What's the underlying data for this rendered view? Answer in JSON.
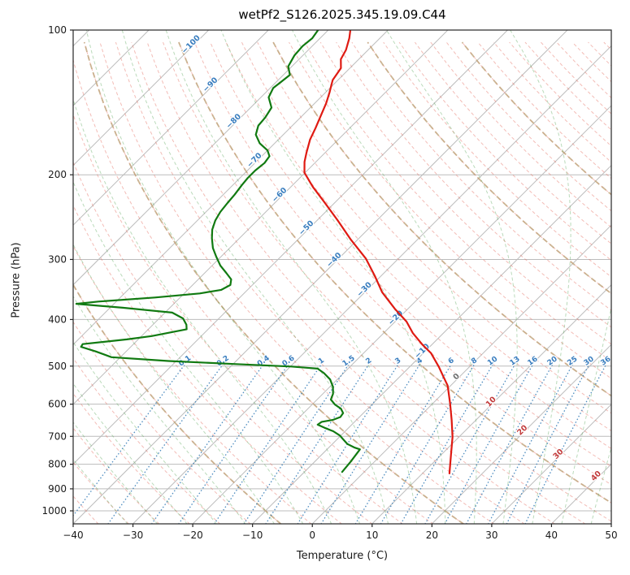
{
  "title": "wetPf2_S126.2025.345.19.09.C44",
  "axes": {
    "xlabel": "Temperature (°C)",
    "ylabel": "Pressure (hPa)",
    "x_ticks": [
      -40,
      -30,
      -20,
      -10,
      0,
      10,
      20,
      30,
      40,
      50
    ],
    "y_ticks": [
      100,
      200,
      300,
      400,
      500,
      600,
      700,
      800,
      900,
      1000
    ],
    "x_min": -40,
    "x_max": 50,
    "p_top": 100,
    "p_bottom": 1064
  },
  "chart_data": {
    "type": "line",
    "variant": "skew-t-log-p",
    "title": "wetPf2_S126.2025.345.19.09.C44",
    "xlabel": "Temperature (°C)",
    "ylabel": "Pressure (hPa)",
    "xlim": [
      -40,
      50
    ],
    "pressure_lim": [
      100,
      1064
    ],
    "skew_degrees": 45,
    "grid": true,
    "series": [
      {
        "name": "temperature",
        "color": "#df1a12",
        "points_p_hPa_T_C": [
          [
            100,
            -76.3
          ],
          [
            104,
            -75.1
          ],
          [
            110,
            -73.7
          ],
          [
            115,
            -73.0
          ],
          [
            120,
            -71.5
          ],
          [
            127,
            -70.9
          ],
          [
            130,
            -70.3
          ],
          [
            135,
            -69.3
          ],
          [
            142,
            -68.1
          ],
          [
            150,
            -67.0
          ],
          [
            160,
            -65.7
          ],
          [
            169,
            -64.7
          ],
          [
            180,
            -63.1
          ],
          [
            188,
            -61.9
          ],
          [
            198,
            -60.1
          ],
          [
            212,
            -56.3
          ],
          [
            227,
            -52.1
          ],
          [
            249,
            -46.5
          ],
          [
            273,
            -41.1
          ],
          [
            299,
            -35.4
          ],
          [
            325,
            -31.0
          ],
          [
            351,
            -27.1
          ],
          [
            380,
            -22.2
          ],
          [
            404,
            -18.1
          ],
          [
            427,
            -15.1
          ],
          [
            451,
            -11.6
          ],
          [
            470,
            -8.7
          ],
          [
            502,
            -5.1
          ],
          [
            524,
            -2.9
          ],
          [
            549,
            -0.5
          ],
          [
            598,
            2.9
          ],
          [
            647,
            5.9
          ],
          [
            702,
            8.9
          ],
          [
            764,
            11.6
          ],
          [
            836,
            14.5
          ]
        ]
      },
      {
        "name": "dewpoint",
        "color": "#117a11",
        "points_p_hPa_T_C": [
          [
            100,
            -81.7
          ],
          [
            104,
            -81.3
          ],
          [
            108,
            -81.6
          ],
          [
            113,
            -81.4
          ],
          [
            119,
            -80.6
          ],
          [
            124,
            -78.9
          ],
          [
            128,
            -79.2
          ],
          [
            132,
            -79.5
          ],
          [
            138,
            -78.7
          ],
          [
            145,
            -76.5
          ],
          [
            152,
            -75.9
          ],
          [
            158,
            -75.7
          ],
          [
            165,
            -74.6
          ],
          [
            172,
            -72.5
          ],
          [
            178,
            -70.0
          ],
          [
            183,
            -68.7
          ],
          [
            189,
            -68.4
          ],
          [
            196,
            -68.7
          ],
          [
            203,
            -68.7
          ],
          [
            210,
            -68.5
          ],
          [
            220,
            -68.1
          ],
          [
            229,
            -67.9
          ],
          [
            239,
            -67.6
          ],
          [
            249,
            -67.0
          ],
          [
            260,
            -66.0
          ],
          [
            271,
            -64.6
          ],
          [
            284,
            -62.8
          ],
          [
            296,
            -60.8
          ],
          [
            309,
            -58.6
          ],
          [
            320,
            -56.4
          ],
          [
            330,
            -54.5
          ],
          [
            339,
            -53.7
          ],
          [
            347,
            -54.4
          ],
          [
            353,
            -57.4
          ],
          [
            360,
            -64.2
          ],
          [
            367,
            -73.0
          ],
          [
            371,
            -76.3
          ],
          [
            378,
            -67.9
          ],
          [
            387,
            -58.8
          ],
          [
            398,
            -56.0
          ],
          [
            410,
            -54.4
          ],
          [
            419,
            -53.6
          ],
          [
            433,
            -58.3
          ],
          [
            440,
            -61.9
          ],
          [
            450,
            -68.5
          ],
          [
            456,
            -68.3
          ],
          [
            466,
            -65.1
          ],
          [
            479,
            -61.5
          ],
          [
            488,
            -51.3
          ],
          [
            495,
            -39.9
          ],
          [
            501,
            -29.9
          ],
          [
            506,
            -25.1
          ],
          [
            517,
            -23.3
          ],
          [
            533,
            -21.2
          ],
          [
            552,
            -19.5
          ],
          [
            571,
            -18.3
          ],
          [
            587,
            -17.7
          ],
          [
            601,
            -16.2
          ],
          [
            613,
            -14.5
          ],
          [
            626,
            -13.4
          ],
          [
            638,
            -13.2
          ],
          [
            647,
            -14.0
          ],
          [
            653,
            -15.5
          ],
          [
            662,
            -15.7
          ],
          [
            672,
            -14.0
          ],
          [
            683,
            -12.0
          ],
          [
            697,
            -10.2
          ],
          [
            710,
            -9.0
          ],
          [
            726,
            -7.5
          ],
          [
            738,
            -5.8
          ],
          [
            745,
            -4.5
          ],
          [
            790,
            -4.0
          ],
          [
            830,
            -3.7
          ]
        ]
      }
    ],
    "isotherm_labels": [
      {
        "t": -100,
        "p": 108
      },
      {
        "t": -90,
        "p": 131
      },
      {
        "t": -80,
        "p": 156
      },
      {
        "t": -70,
        "p": 188
      },
      {
        "t": -60,
        "p": 222
      },
      {
        "t": -50,
        "p": 260
      },
      {
        "t": -40,
        "p": 303
      },
      {
        "t": -30,
        "p": 349
      },
      {
        "t": -20,
        "p": 400
      },
      {
        "t": -10,
        "p": 469
      },
      {
        "t": 0,
        "p": 530
      },
      {
        "t": 10,
        "p": 598
      },
      {
        "t": 20,
        "p": 685
      },
      {
        "t": 30,
        "p": 768
      },
      {
        "t": 40,
        "p": 853
      }
    ],
    "mixing_ratio_labels_g_per_kg": [
      0.1,
      0.2,
      0.4,
      0.6,
      1,
      1.5,
      2,
      3,
      4,
      6,
      8,
      10,
      13,
      16,
      20,
      25,
      30,
      36
    ],
    "mixing_label_pressure": 492,
    "background": {
      "isotherms": {
        "start": -120,
        "end": 50,
        "step": 10,
        "color": "#bcbcbc"
      },
      "dry_adiabats": {
        "start": -55,
        "end": 195,
        "step": 5,
        "color": "rgba(228,106,94,0.45)"
      },
      "moist_adiabats": {
        "start": -35,
        "end": 45,
        "step": 5,
        "color": "rgba(90,168,90,0.42)"
      },
      "highlight_adiabats": {
        "thetas": [
          -10,
          20,
          50,
          80,
          110,
          140
        ],
        "color": "rgba(191,164,122,0.8)"
      },
      "mixing_lines": {
        "color": "rgba(56,126,184,0.9)"
      }
    },
    "label_colors": {
      "cold": "#3a7ebf",
      "zero": "#6f6f6f",
      "warm": "#c23b3b"
    },
    "frame_color": "#262626",
    "tick_color": "#1a1a1a"
  }
}
